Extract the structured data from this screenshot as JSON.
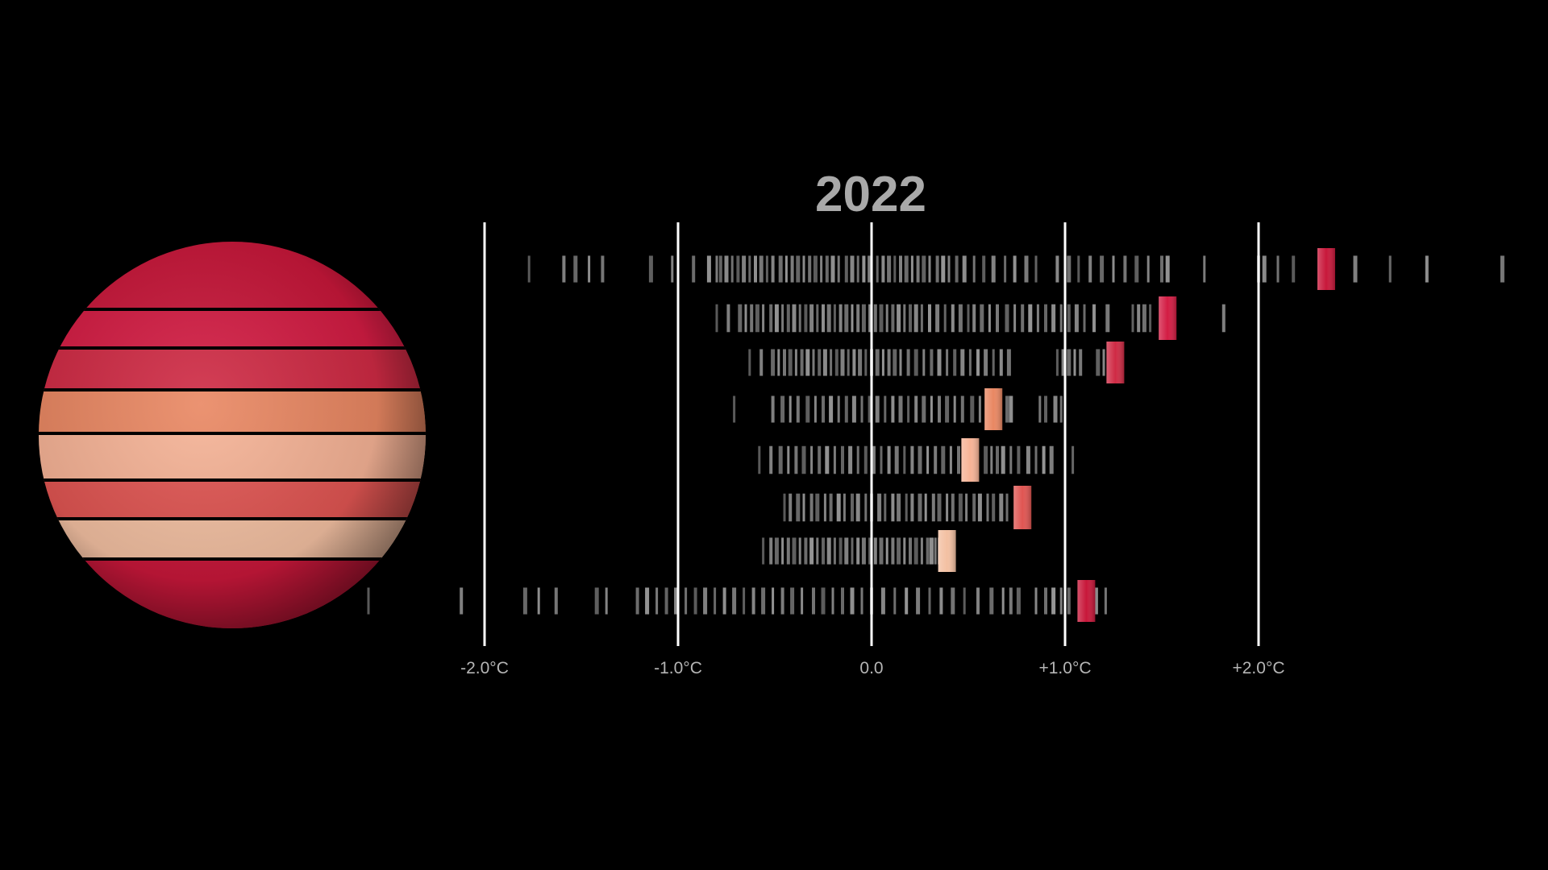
{
  "year": "2022",
  "colors": {
    "background": "#000000",
    "gridline": "#ffffff",
    "history_tick": "#8c8c8c",
    "band_colors": [
      "#c8173a",
      "#d31c43",
      "#cf2a44",
      "#e98762",
      "#f6b396",
      "#e05552",
      "#f3c0a2",
      "#c8173a"
    ]
  },
  "chart_data": {
    "type": "scatter",
    "description_of_encoding": "Latitude bands (north to south) vs temperature anomaly",
    "title": "2022",
    "xlabel": "",
    "ylabel": "",
    "xlim": [
      -2.0,
      2.6
    ],
    "x_ticks": [
      -2.0,
      -1.0,
      0.0,
      1.0,
      2.0
    ],
    "x_tick_labels": [
      "-2.0°C",
      "-1.0°C",
      "0.0",
      "+1.0°C",
      "+2.0°C"
    ],
    "grid": true,
    "bands": [
      {
        "current": 2.35,
        "history": [
          -1.77,
          -1.59,
          -1.53,
          -1.46,
          -1.39,
          -1.14,
          -1.03,
          -0.92,
          -0.84,
          -0.8,
          -0.78,
          -0.75,
          -0.72,
          -0.69,
          -0.66,
          -0.63,
          -0.6,
          -0.57,
          -0.54,
          -0.51,
          -0.47,
          -0.44,
          -0.41,
          -0.38,
          -0.35,
          -0.32,
          -0.29,
          -0.26,
          -0.23,
          -0.2,
          -0.17,
          -0.13,
          -0.1,
          -0.07,
          -0.04,
          -0.01,
          0.03,
          0.06,
          0.09,
          0.12,
          0.15,
          0.18,
          0.21,
          0.24,
          0.27,
          0.3,
          0.34,
          0.37,
          0.4,
          0.44,
          0.48,
          0.53,
          0.58,
          0.63,
          0.69,
          0.74,
          0.8,
          0.85,
          0.96,
          1.02,
          1.07,
          1.13,
          1.19,
          1.25,
          1.31,
          1.37,
          1.43,
          1.5,
          1.53,
          1.72,
          2.0,
          2.03,
          2.1,
          2.18,
          2.5,
          2.68,
          2.87,
          3.26
        ]
      },
      {
        "current": 1.53,
        "history": [
          -0.8,
          -0.74,
          -0.68,
          -0.65,
          -0.62,
          -0.59,
          -0.56,
          -0.52,
          -0.49,
          -0.46,
          -0.43,
          -0.4,
          -0.37,
          -0.34,
          -0.31,
          -0.28,
          -0.25,
          -0.22,
          -0.19,
          -0.16,
          -0.13,
          -0.1,
          -0.07,
          -0.04,
          -0.01,
          0.02,
          0.05,
          0.08,
          0.11,
          0.14,
          0.17,
          0.2,
          0.23,
          0.26,
          0.3,
          0.34,
          0.38,
          0.42,
          0.46,
          0.5,
          0.53,
          0.57,
          0.61,
          0.65,
          0.7,
          0.74,
          0.78,
          0.82,
          0.86,
          0.9,
          0.94,
          0.98,
          1.02,
          1.06,
          1.1,
          1.15,
          1.22,
          1.35,
          1.38,
          1.41,
          1.44,
          1.82
        ]
      },
      {
        "current": 1.26,
        "history": [
          -0.63,
          -0.57,
          -0.51,
          -0.48,
          -0.45,
          -0.42,
          -0.39,
          -0.36,
          -0.33,
          -0.3,
          -0.27,
          -0.24,
          -0.21,
          -0.18,
          -0.15,
          -0.12,
          -0.09,
          -0.06,
          -0.03,
          0.0,
          0.03,
          0.06,
          0.09,
          0.12,
          0.15,
          0.19,
          0.23,
          0.27,
          0.31,
          0.35,
          0.39,
          0.43,
          0.47,
          0.51,
          0.55,
          0.59,
          0.63,
          0.67,
          0.71,
          0.96,
          0.99,
          1.02,
          1.05,
          1.08,
          1.17,
          1.2
        ]
      },
      {
        "current": 0.63,
        "history": [
          -0.71,
          -0.51,
          -0.46,
          -0.42,
          -0.38,
          -0.33,
          -0.29,
          -0.25,
          -0.21,
          -0.17,
          -0.13,
          -0.09,
          -0.05,
          -0.01,
          0.03,
          0.07,
          0.11,
          0.15,
          0.19,
          0.23,
          0.27,
          0.31,
          0.35,
          0.39,
          0.43,
          0.47,
          0.52,
          0.56,
          0.7,
          0.72,
          0.87,
          0.9,
          0.95,
          0.98
        ]
      },
      {
        "current": 0.51,
        "history": [
          -0.58,
          -0.52,
          -0.47,
          -0.43,
          -0.39,
          -0.35,
          -0.31,
          -0.27,
          -0.23,
          -0.19,
          -0.15,
          -0.11,
          -0.07,
          -0.03,
          0.01,
          0.05,
          0.09,
          0.13,
          0.17,
          0.21,
          0.25,
          0.29,
          0.33,
          0.37,
          0.41,
          0.45,
          0.59,
          0.62,
          0.65,
          0.68,
          0.72,
          0.76,
          0.81,
          0.85,
          0.89,
          0.93,
          1.04
        ]
      },
      {
        "current": 0.78,
        "history": [
          -0.45,
          -0.42,
          -0.38,
          -0.35,
          -0.31,
          -0.28,
          -0.24,
          -0.21,
          -0.17,
          -0.14,
          -0.1,
          -0.07,
          -0.03,
          0.0,
          0.04,
          0.07,
          0.11,
          0.14,
          0.18,
          0.21,
          0.25,
          0.28,
          0.32,
          0.35,
          0.39,
          0.42,
          0.46,
          0.49,
          0.53,
          0.56,
          0.6,
          0.63,
          0.67,
          0.7
        ]
      },
      {
        "current": 0.39,
        "history": [
          -0.56,
          -0.52,
          -0.49,
          -0.46,
          -0.43,
          -0.4,
          -0.37,
          -0.34,
          -0.31,
          -0.28,
          -0.25,
          -0.22,
          -0.19,
          -0.16,
          -0.13,
          -0.1,
          -0.07,
          -0.04,
          -0.01,
          0.02,
          0.05,
          0.08,
          0.11,
          0.14,
          0.17,
          0.2,
          0.23,
          0.26,
          0.29,
          0.31,
          0.33,
          0.35
        ]
      },
      {
        "current": 1.11,
        "history": [
          -2.6,
          -2.12,
          -1.79,
          -1.72,
          -1.63,
          -1.42,
          -1.37,
          -1.21,
          -1.16,
          -1.11,
          -1.06,
          -1.01,
          -0.96,
          -0.91,
          -0.86,
          -0.81,
          -0.76,
          -0.71,
          -0.66,
          -0.61,
          -0.56,
          -0.51,
          -0.46,
          -0.41,
          -0.36,
          -0.3,
          -0.25,
          -0.2,
          -0.15,
          -0.1,
          -0.05,
          0.0,
          0.06,
          0.12,
          0.18,
          0.24,
          0.3,
          0.36,
          0.42,
          0.48,
          0.55,
          0.62,
          0.68,
          0.72,
          0.76,
          0.85,
          0.9,
          0.94,
          0.98,
          1.02,
          1.16,
          1.21
        ]
      }
    ]
  }
}
